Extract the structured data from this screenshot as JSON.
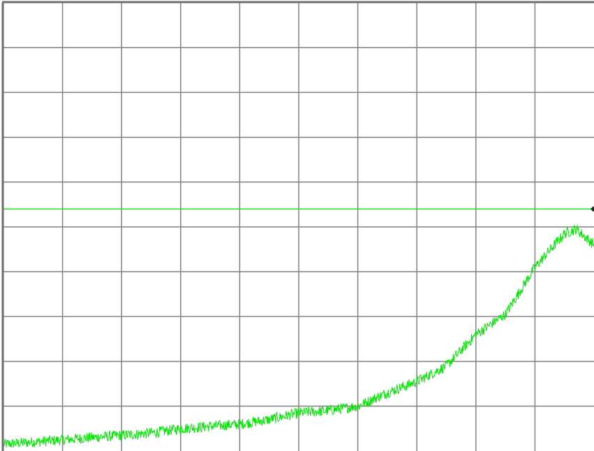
{
  "chart_data": {
    "type": "line",
    "title": "",
    "xlabel": "",
    "ylabel": "",
    "grid": true,
    "grid_divisions": {
      "x": 10,
      "y": 10
    },
    "xlim": [
      0,
      10
    ],
    "ylim": [
      0,
      10
    ],
    "colors": {
      "trace": "#00e800",
      "reference": "#22dd22",
      "grid": "#808080",
      "frame": "#6e6e6e",
      "marker": "#222222",
      "background": "#ffffff"
    },
    "reference_line": {
      "y": 5.4
    },
    "marker": {
      "x": 10,
      "y": 5.4
    },
    "series": [
      {
        "noise": 0.12,
        "x": [
          0,
          0.5,
          1.0,
          1.5,
          2.0,
          2.5,
          3.0,
          3.5,
          4.0,
          4.5,
          5.0,
          5.5,
          6.0,
          6.5,
          7.0,
          7.5,
          8.0,
          8.5,
          9.0,
          9.5,
          9.7,
          10.0
        ],
        "y": [
          0.15,
          0.2,
          0.25,
          0.3,
          0.35,
          0.4,
          0.5,
          0.55,
          0.6,
          0.7,
          0.85,
          0.9,
          1.0,
          1.3,
          1.55,
          1.9,
          2.6,
          3.05,
          4.1,
          4.85,
          4.95,
          4.6
        ]
      }
    ]
  }
}
